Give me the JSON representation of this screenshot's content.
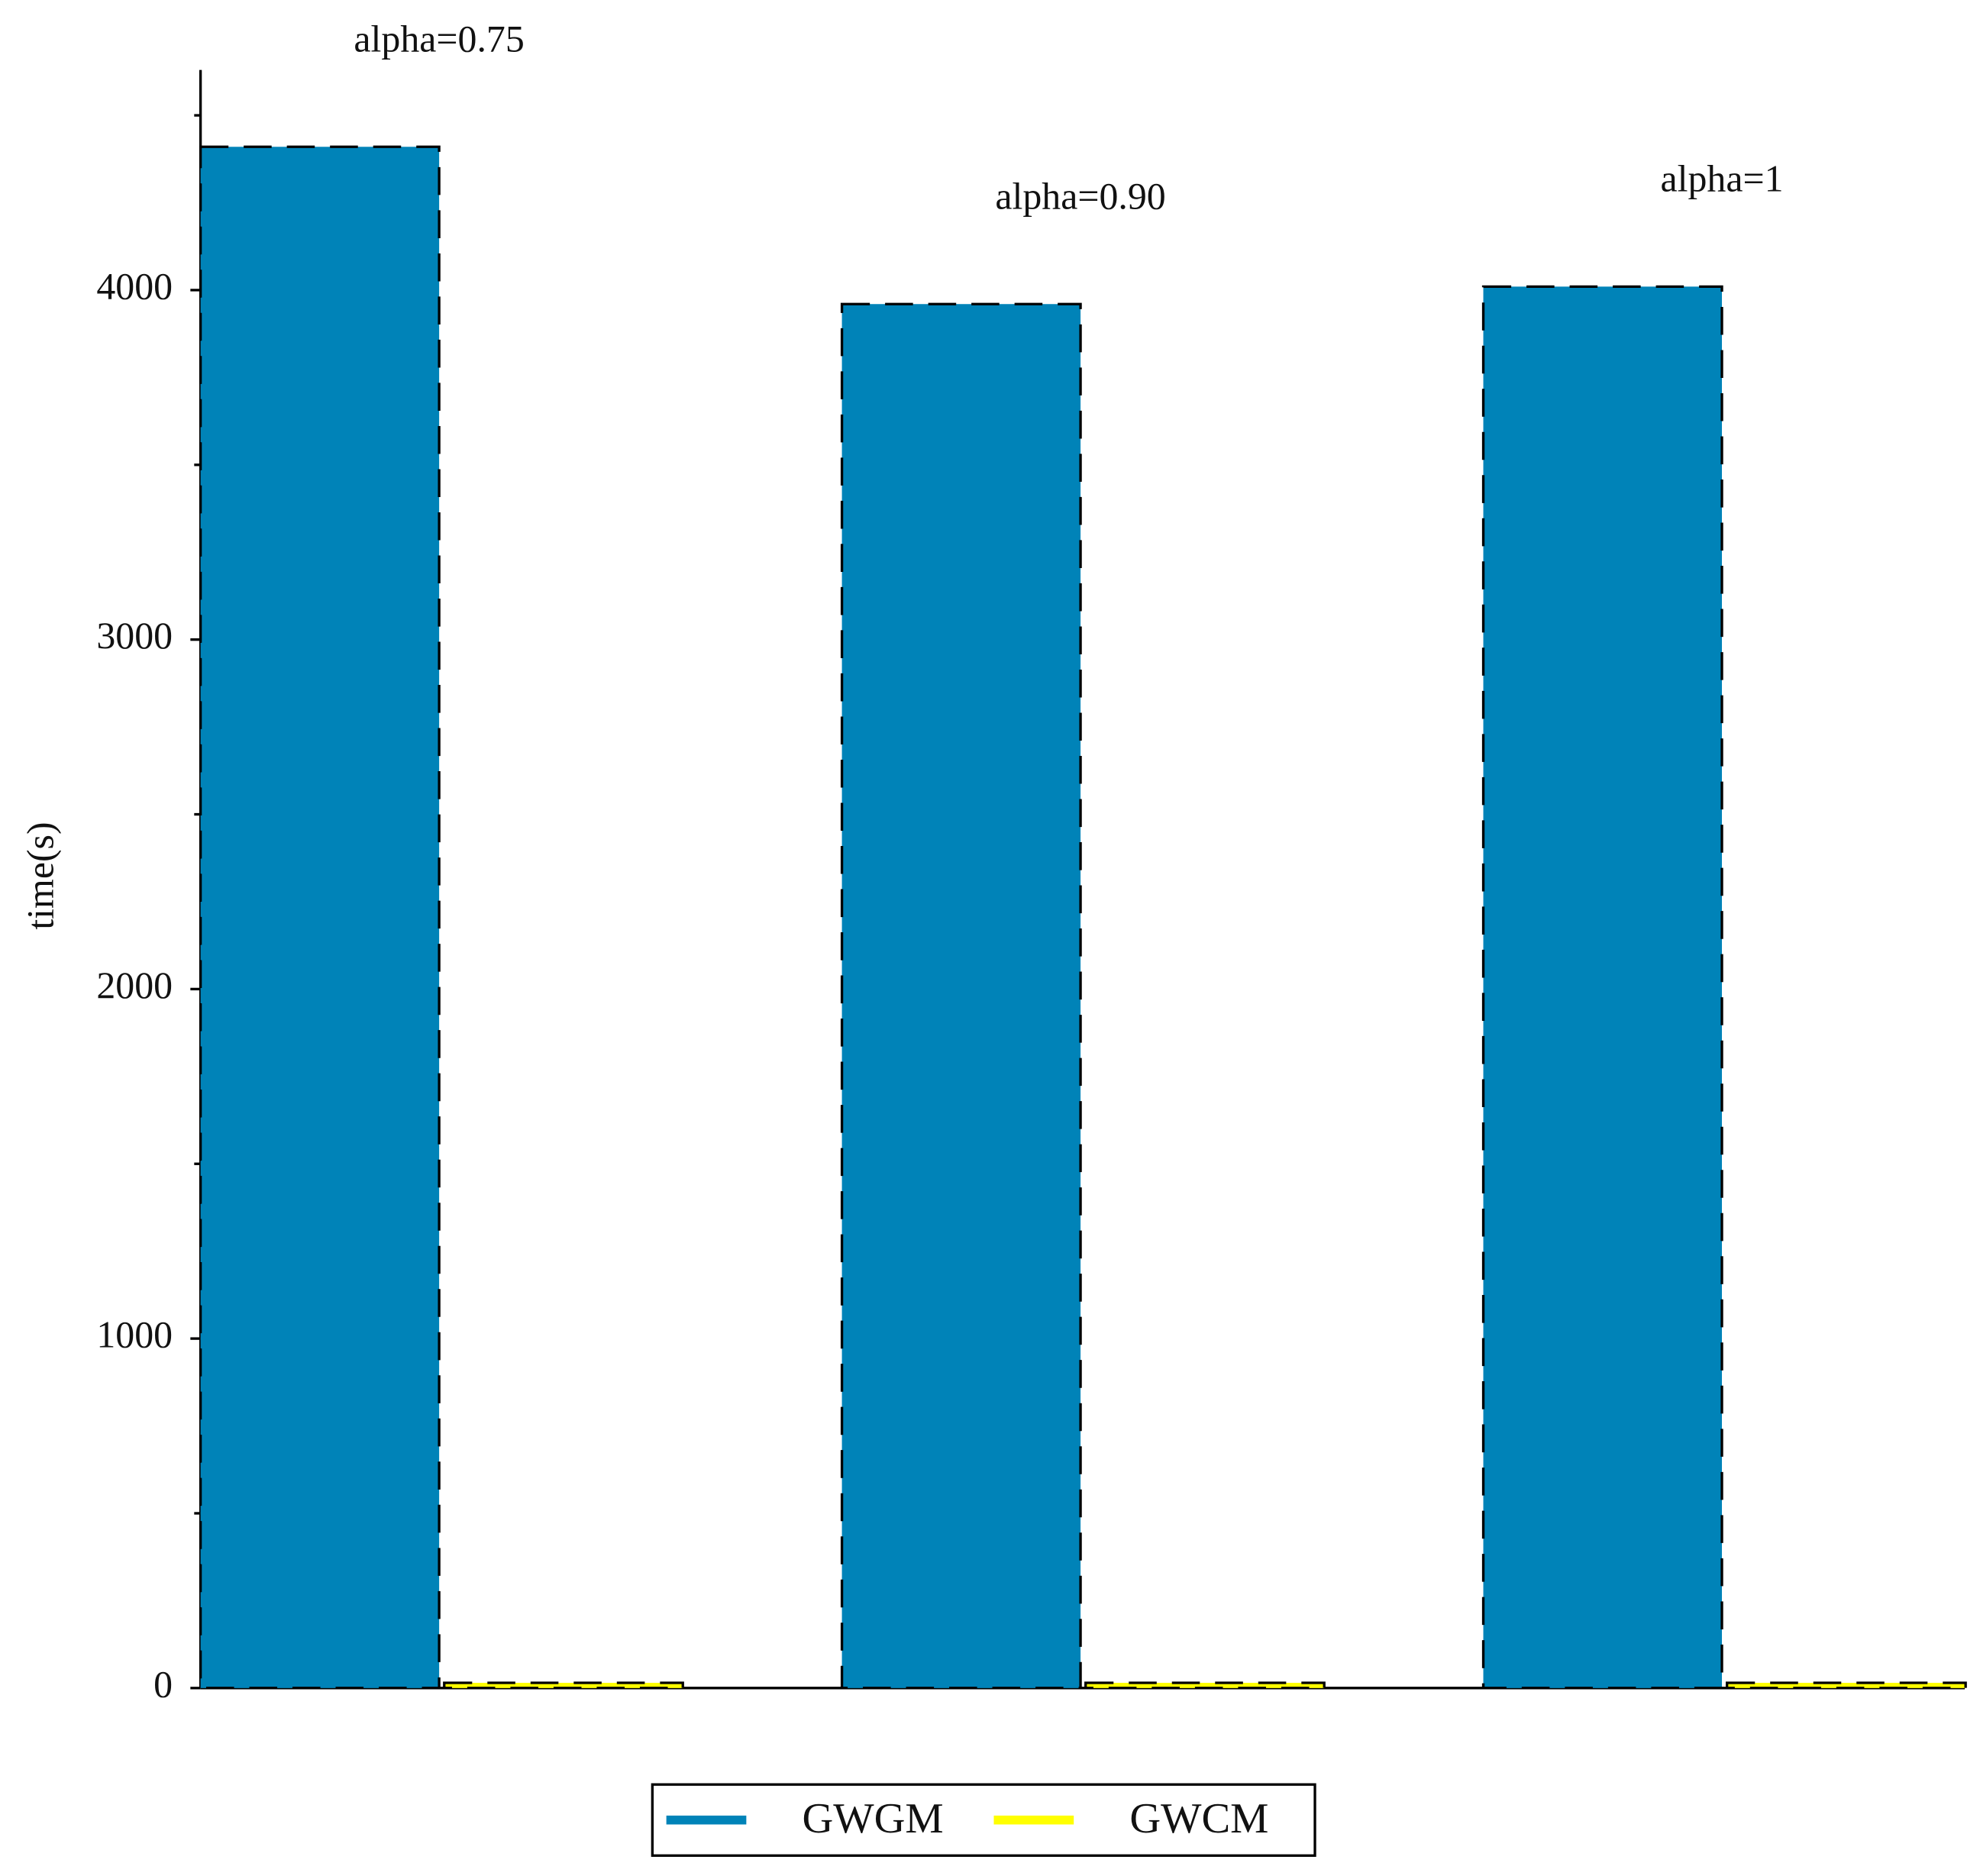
{
  "chart_data": {
    "type": "bar",
    "y_label": "time(s)",
    "categories": [
      "alpha=0.75",
      "alpha=0.90",
      "alpha=1"
    ],
    "series": [
      {
        "name": "GWGM",
        "color": "#0083b8",
        "values": [
          4410,
          3960,
          4010
        ]
      },
      {
        "name": "GWCM",
        "color": "#ffff00",
        "values": [
          15,
          15,
          15
        ]
      }
    ],
    "ylim": [
      0,
      4630
    ],
    "yticks": [
      0,
      1000,
      2000,
      3000,
      4000
    ],
    "minor_yticks": [
      500,
      1500,
      2500,
      3500,
      4500
    ],
    "legend": "bottom"
  }
}
